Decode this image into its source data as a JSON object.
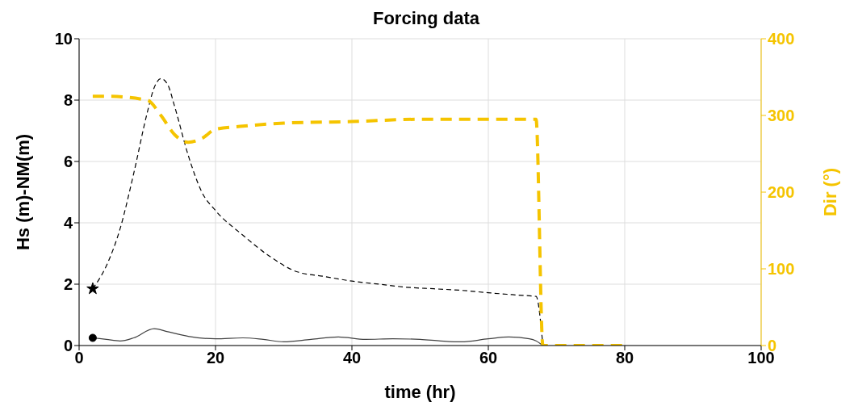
{
  "chart_data": {
    "type": "line",
    "title": "Forcing data",
    "xlabel": "time (hr)",
    "ylabel": "Hs (m)-NM(m)",
    "y2label": "Dir (°)",
    "xlim": [
      0,
      100
    ],
    "xticks": [
      0,
      20,
      40,
      60,
      80,
      100
    ],
    "ylim": [
      0,
      10
    ],
    "yticks": [
      0,
      2,
      4,
      6,
      8,
      10
    ],
    "y2lim": [
      0,
      400
    ],
    "y2ticks": [
      0,
      100,
      200,
      300,
      400
    ],
    "grid": true,
    "legend": false,
    "series": [
      {
        "color": "#000000",
        "line_style": "dashed",
        "x": [
          2,
          4,
          6,
          8,
          10,
          11,
          12,
          13,
          14,
          16,
          18,
          20,
          24,
          28,
          32,
          36,
          40,
          44,
          48,
          52,
          56,
          60,
          64,
          67,
          68
        ],
        "values": [
          1.85,
          2.6,
          3.8,
          5.6,
          7.6,
          8.4,
          8.7,
          8.5,
          7.8,
          6.2,
          5.0,
          4.4,
          3.6,
          2.9,
          2.4,
          2.25,
          2.1,
          2.0,
          1.9,
          1.85,
          1.8,
          1.72,
          1.65,
          1.6,
          0
        ]
      },
      {
        "color": "#404040",
        "line_style": "solid",
        "x": [
          2,
          4,
          6,
          8,
          11,
          13,
          16,
          20,
          24,
          27,
          30,
          34,
          38,
          42,
          46,
          50,
          53,
          56,
          60,
          63,
          66,
          67,
          68
        ],
        "values": [
          0.25,
          0.2,
          0.15,
          0.25,
          0.55,
          0.45,
          0.3,
          0.22,
          0.25,
          0.2,
          0.12,
          0.2,
          0.28,
          0.2,
          0.22,
          0.2,
          0.15,
          0.12,
          0.22,
          0.28,
          0.22,
          0.15,
          0
        ]
      },
      {
        "type": "scatter",
        "color": "#000000",
        "marker": "star",
        "x": [
          2
        ],
        "values": [
          1.85
        ]
      },
      {
        "type": "scatter",
        "color": "#000000",
        "marker": "circle",
        "x": [
          2
        ],
        "values": [
          0.25
        ]
      },
      {
        "axis": "y2",
        "color": "#f5c400",
        "line_style": "dashed",
        "x": [
          2,
          4,
          10,
          12,
          14,
          16,
          18,
          20,
          24,
          30,
          40,
          50,
          60,
          67,
          68,
          80
        ],
        "values": [
          325,
          325,
          320,
          300,
          275,
          265,
          270,
          282,
          286,
          290,
          292,
          295,
          295,
          295,
          0,
          0
        ]
      }
    ]
  }
}
